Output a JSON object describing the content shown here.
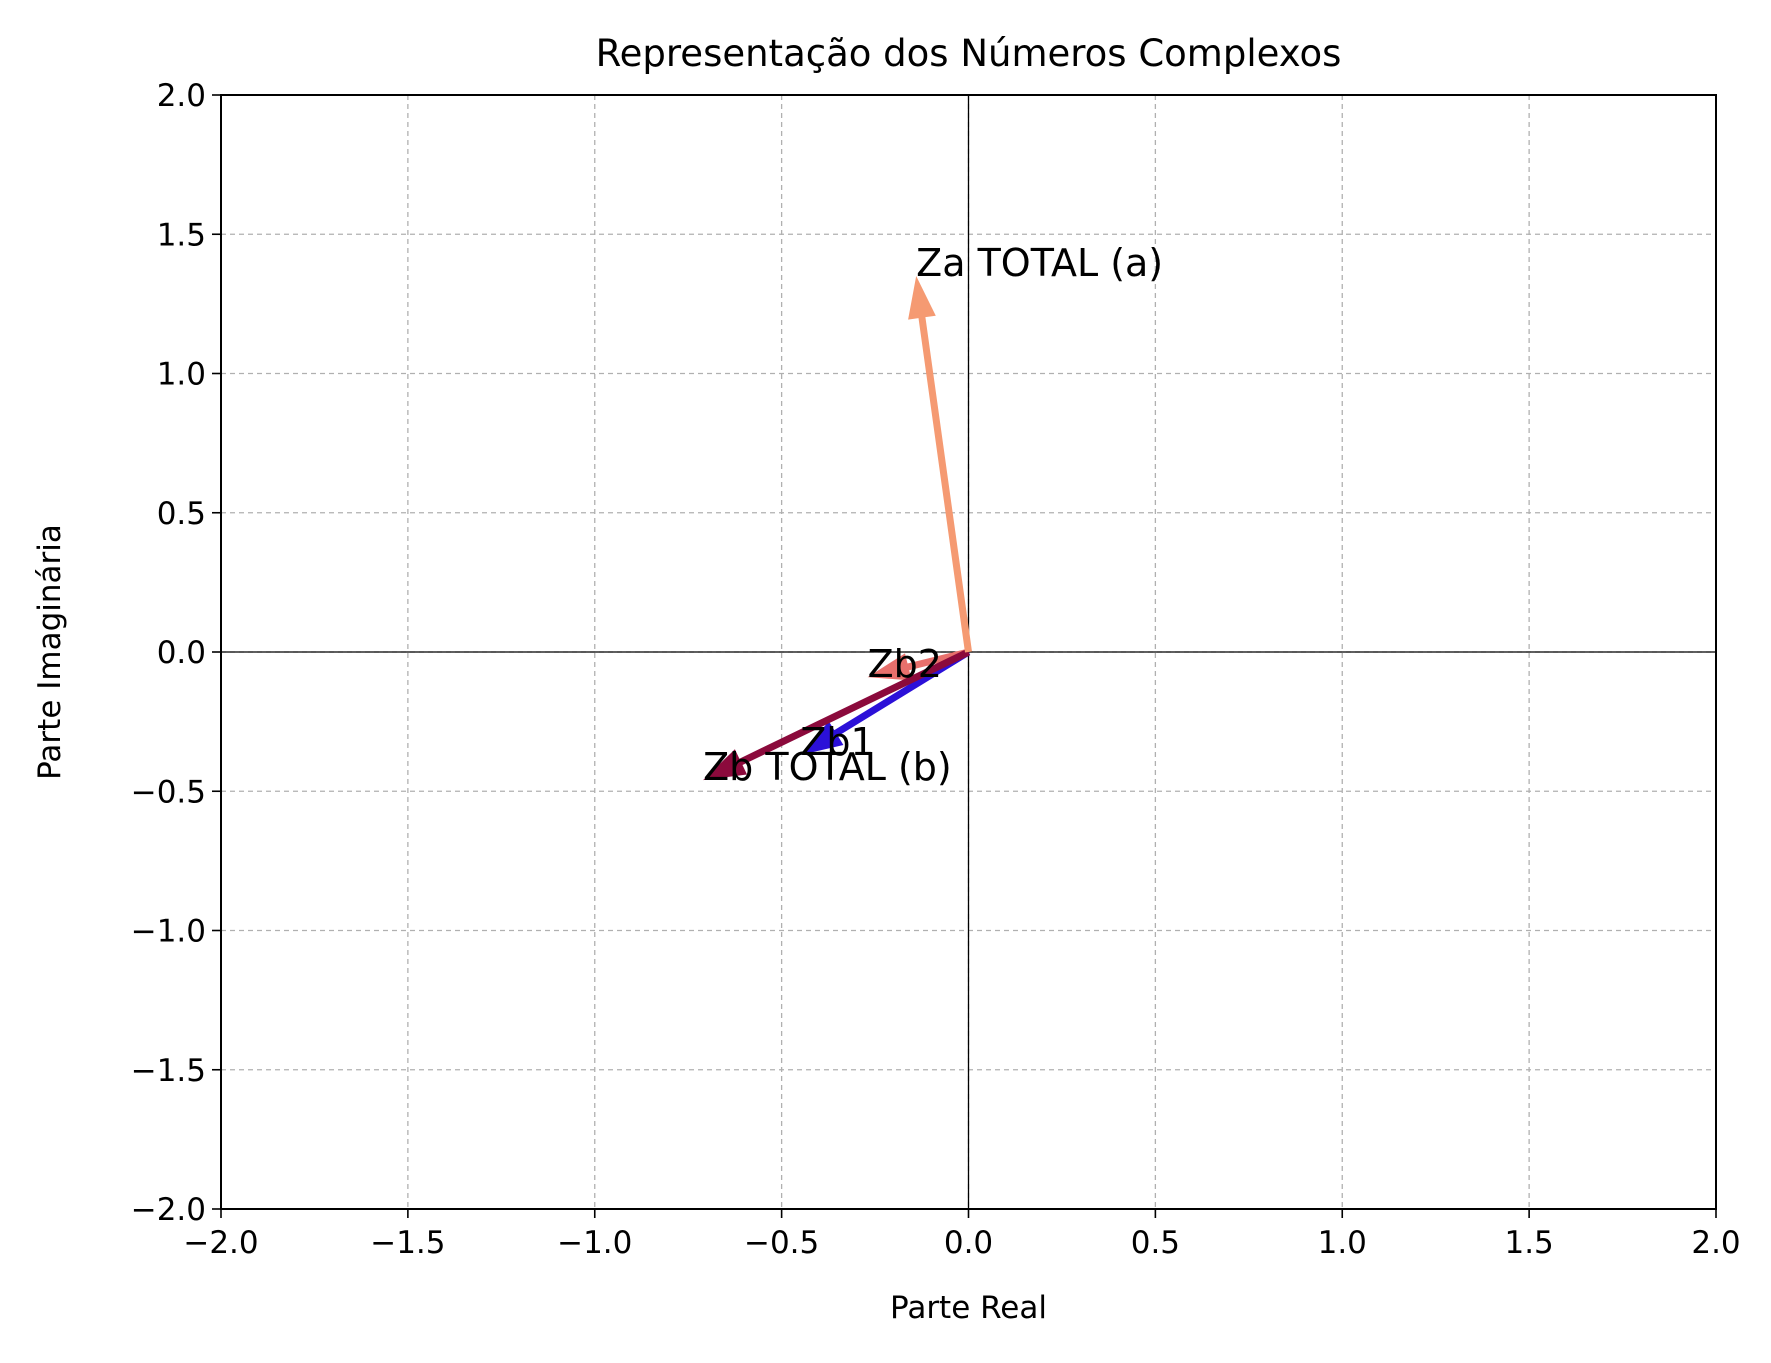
{
  "chart_data": {
    "type": "vector",
    "title": "Representação dos Números Complexos",
    "xlabel": "Parte Real",
    "ylabel": "Parte Imaginária",
    "xlim": [
      -2.0,
      2.0
    ],
    "ylim": [
      -2.0,
      2.0
    ],
    "xticks": [
      -2.0,
      -1.5,
      -1.0,
      -0.5,
      0.0,
      0.5,
      1.0,
      1.5,
      2.0
    ],
    "yticks": [
      -2.0,
      -1.5,
      -1.0,
      -0.5,
      0.0,
      0.5,
      1.0,
      1.5,
      2.0
    ],
    "xtick_labels": [
      "−2.0",
      "−1.5",
      "−1.0",
      "−0.5",
      "0.0",
      "0.5",
      "1.0",
      "1.5",
      "2.0"
    ],
    "ytick_labels": [
      "−2.0",
      "−1.5",
      "−1.0",
      "−0.5",
      "0.0",
      "0.5",
      "1.0",
      "1.5",
      "2.0"
    ],
    "grid": true,
    "grid_style": "dashed",
    "axis_lines_at_zero": true,
    "vectors": [
      {
        "label": "Zb1",
        "x": -0.45,
        "y": -0.37,
        "color": "#2b10d8"
      },
      {
        "label": "Zb2",
        "x": -0.27,
        "y": -0.09,
        "color": "#e8706c"
      },
      {
        "label": "Zb TOTAL (b)",
        "x": -0.71,
        "y": -0.46,
        "color": "#8b0a3c"
      },
      {
        "label": "Za TOTAL (a)",
        "x": -0.14,
        "y": 1.35,
        "color": "#f59a72"
      }
    ]
  }
}
